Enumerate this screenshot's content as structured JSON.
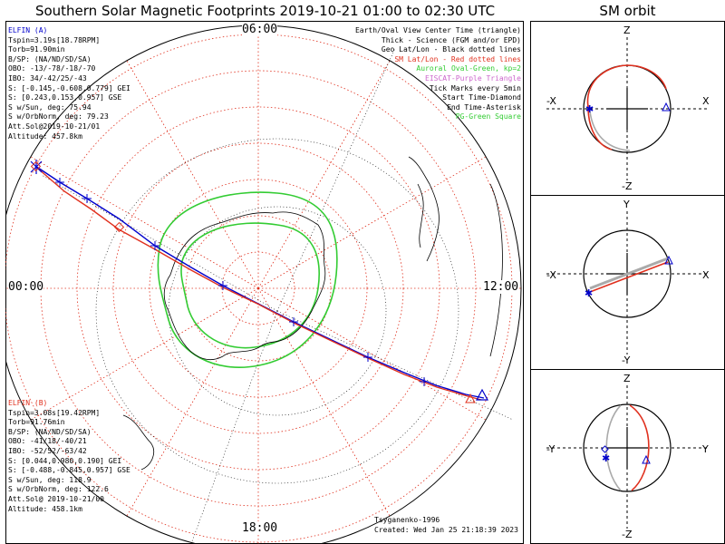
{
  "title": "Southern Solar Magnetic Footprints 2019-10-21 01:00 to 02:30 UTC",
  "sm_title": "SM orbit",
  "clock": {
    "top": "06:00",
    "bottom": "18:00",
    "left": "00:00",
    "right": "12:00"
  },
  "elfin_a": {
    "name": "ELFIN (A)",
    "lines": [
      "Tspin=3.19s[18.78RPM]",
      "Torb=91.90min",
      "B/SP: (NA/ND/SD/SA)",
      "OBO: -13/-78/-18/-70",
      "IBO: 34/-42/25/-43",
      "S: [-0.145,-0.608,0.779] GEI",
      "S: [0.243,0.153,0.957] GSE",
      "S w/Sun, deg: 75.94",
      "S w/OrbNorm, deg: 79.23",
      "Att.Sol@2019-10-21/01",
      "Altitude: 457.8km"
    ]
  },
  "elfin_b": {
    "name": "ELFIN (B)",
    "lines": [
      "Tspin=3.08s[19.42RPM]",
      "Torb=91.76min",
      "B/SP: (NA/ND/SD/SA)",
      "OBO: -41/18/-40/21",
      "IBO: -52/52/-63/42",
      "S: [0.044,0.980,0.190] GEI",
      "S: [-0.488,-0.845,0.957] GSE",
      "S w/Sun, deg: 118.9",
      "S w/OrbNorm, deg: 122.6",
      "Att.Sol@ 2019-10-21/00",
      "Altitude: 458.1km"
    ]
  },
  "legend": [
    {
      "text": "Earth/Oval View Center Time (triangle)",
      "color": "#000000"
    },
    {
      "text": "Thick - Science (FGM and/or EPD)",
      "color": "#000000"
    },
    {
      "text": "Geo Lat/Lon - Black dotted lines",
      "color": "#000000"
    },
    {
      "text": "SM Lat/Lon - Red dotted lines",
      "color": "#e0301e"
    },
    {
      "text": "Auroral Oval-Green, kp=2",
      "color": "#33cc33"
    },
    {
      "text": "EISCAT-Purple Triangle",
      "color": "#cc66cc"
    },
    {
      "text": "Tick Marks every 5min",
      "color": "#000000"
    },
    {
      "text": "Start Time-Diamond",
      "color": "#000000"
    },
    {
      "text": "End Time-Asterisk",
      "color": "#000000"
    },
    {
      "text": "PG-Green Square",
      "color": "#33cc33"
    }
  ],
  "credits": {
    "model": "Tsyganenko-1996",
    "created": "Created: Wed Jan 25 21:18:39 2023"
  },
  "sm_panels": [
    {
      "top_label": "Z",
      "bottom_label": "-Z",
      "left_label": "-X",
      "right_label": "X"
    },
    {
      "top_label": "Y",
      "bottom_label": "-Y",
      "left_label": "-X",
      "right_label": "X"
    },
    {
      "top_label": "Z",
      "bottom_label": "-Z",
      "left_label": "-Y",
      "right_label": "Y"
    }
  ],
  "colors": {
    "elfin_a": "#0000cc",
    "elfin_b": "#e0301e",
    "oval": "#33cc33",
    "sm_grid": "#e0301e",
    "geo_grid": "#000000",
    "orbit_gray": "#aaaaaa"
  }
}
